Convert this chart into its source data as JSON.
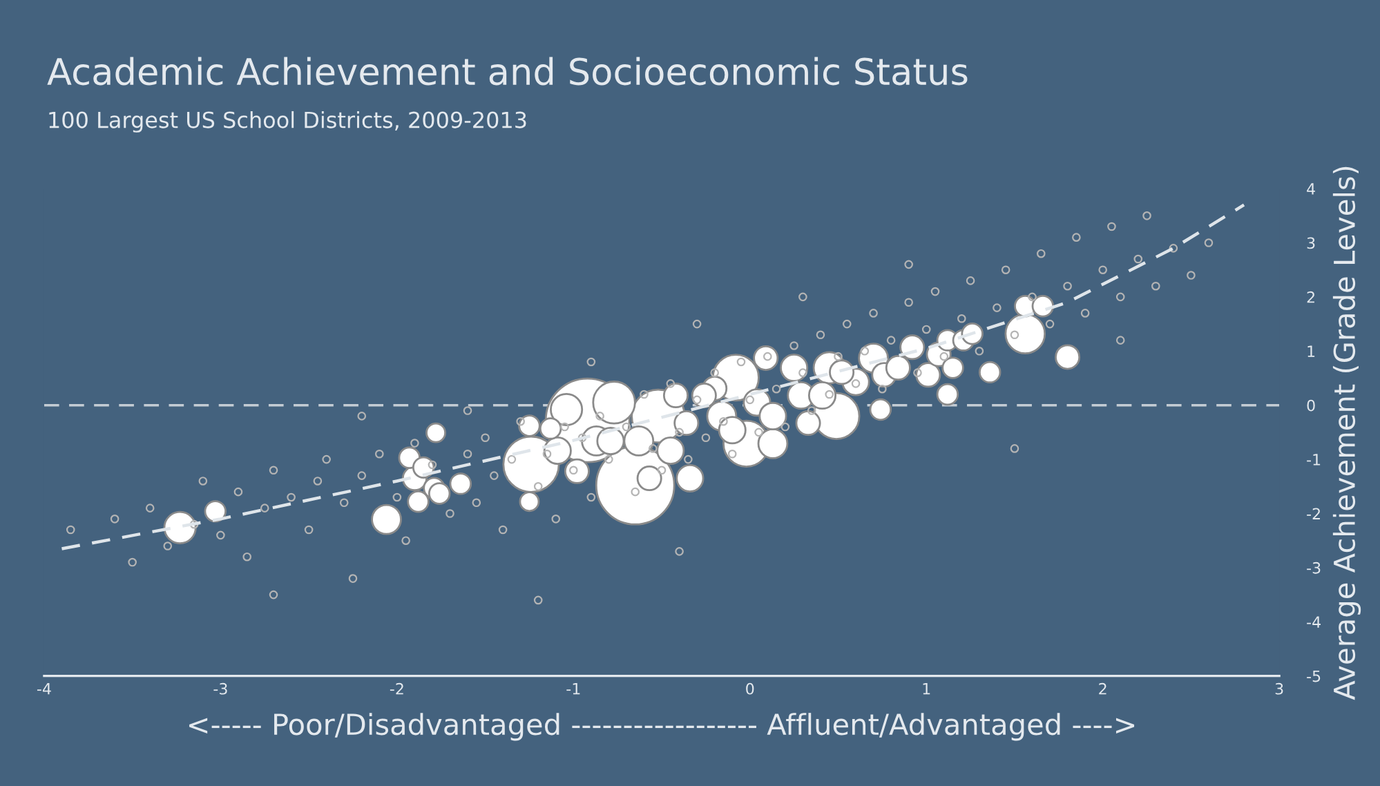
{
  "chart_data": {
    "type": "bubble",
    "title": "Academic Achievement and Socioeconomic Status",
    "subtitle": "100 Largest US School Districts, 2009-2013",
    "xlabel": "<----- Poor/Disadvantaged ------------------ Affluent/Advantaged ---->",
    "ylabel": "Average Achievement (Grade Levels)",
    "xlim": [
      -4,
      3
    ],
    "ylim": [
      -5,
      4
    ],
    "xticks": [
      -4,
      -3,
      -2,
      -1,
      0,
      1,
      2,
      3
    ],
    "yticks": [
      -5,
      -4,
      -3,
      -2,
      -1,
      0,
      1,
      2,
      3,
      4
    ],
    "grid": false,
    "legend": false,
    "marker": "circle",
    "ref_lines": [
      {
        "axis": "y",
        "value": 0,
        "color": "#c4ccd4",
        "line_style": "dashed"
      }
    ],
    "series": [
      {
        "type": "scatter",
        "color": "#b4b4b4",
        "x": [
          -3.85,
          -3.6,
          -3.5,
          -3.4,
          -3.3,
          -3.15,
          -3.1,
          -3.0,
          -2.9,
          -2.85,
          -2.75,
          -2.7,
          -2.6,
          -2.5,
          -2.45,
          -2.4,
          -2.3,
          -2.25,
          -2.2,
          -2.1,
          -2.0,
          -1.95,
          -1.9,
          -1.8,
          -1.7,
          -1.6,
          -1.55,
          -1.5,
          -1.45,
          -1.4,
          -1.35,
          -1.3,
          -1.2,
          -1.15,
          -1.1,
          -1.05,
          -1.0,
          -0.95,
          -0.9,
          -0.85,
          -0.8,
          -0.7,
          -0.65,
          -0.6,
          -0.55,
          -0.5,
          -0.45,
          -0.4,
          -0.35,
          -0.3,
          -0.25,
          -0.2,
          -0.15,
          -0.1,
          -0.05,
          0.0,
          0.05,
          0.1,
          0.15,
          0.2,
          0.25,
          0.3,
          0.35,
          0.4,
          0.45,
          0.5,
          0.55,
          0.6,
          0.65,
          0.7,
          0.75,
          0.8,
          0.9,
          0.95,
          1.0,
          1.05,
          1.1,
          1.2,
          1.25,
          1.3,
          1.4,
          1.45,
          1.5,
          1.6,
          1.65,
          1.7,
          1.8,
          1.85,
          1.9,
          2.0,
          2.05,
          2.1,
          2.2,
          2.25,
          2.3,
          2.4,
          2.5,
          2.6,
          -2.2,
          -1.6,
          -0.9,
          -0.3,
          0.3,
          0.9,
          1.5,
          2.1,
          -2.7,
          -1.2,
          -0.4
        ],
        "values": [
          -2.3,
          -2.1,
          -2.9,
          -1.9,
          -2.6,
          -2.2,
          -1.4,
          -2.4,
          -1.6,
          -2.8,
          -1.9,
          -1.2,
          -1.7,
          -2.3,
          -1.4,
          -1.0,
          -1.8,
          -3.2,
          -1.3,
          -0.9,
          -1.7,
          -2.5,
          -0.7,
          -1.1,
          -2.0,
          -0.9,
          -1.8,
          -0.6,
          -1.3,
          -2.3,
          -1.0,
          -0.3,
          -1.5,
          -0.9,
          -2.1,
          -0.4,
          -1.2,
          -0.6,
          -1.7,
          -0.2,
          -1.0,
          -0.4,
          -1.6,
          0.2,
          -0.8,
          -1.2,
          0.4,
          -0.5,
          -1.0,
          0.1,
          -0.6,
          0.6,
          -0.3,
          -0.9,
          0.8,
          0.1,
          -0.5,
          0.9,
          0.3,
          -0.4,
          1.1,
          0.6,
          -0.1,
          1.3,
          0.2,
          0.9,
          1.5,
          0.4,
          1.0,
          1.7,
          0.3,
          1.2,
          1.9,
          0.6,
          1.4,
          2.1,
          0.9,
          1.6,
          2.3,
          1.0,
          1.8,
          2.5,
          1.3,
          2.0,
          2.8,
          1.5,
          2.2,
          3.1,
          1.7,
          2.5,
          3.3,
          2.0,
          2.7,
          3.5,
          2.2,
          2.9,
          2.4,
          3.0,
          -0.2,
          -0.1,
          0.8,
          1.5,
          2.0,
          2.6,
          -0.8,
          1.2,
          -3.5,
          -3.6,
          -2.7
        ]
      },
      {
        "type": "line",
        "color": "#dfe5ea",
        "line_style": "dashed",
        "marker": "none",
        "x": [
          -3.9,
          -3.0,
          -2.0,
          -1.0,
          0.0,
          1.0,
          1.8,
          2.4,
          2.8
        ],
        "values": [
          -2.65,
          -2.1,
          -1.4,
          -0.65,
          0.2,
          1.05,
          1.9,
          2.9,
          3.7
        ]
      },
      {
        "color": "#ffffff",
        "x": [
          -3.23,
          -3.03,
          -2.06,
          -1.93,
          -1.85,
          -1.9,
          -1.79,
          -1.88,
          -1.76,
          -1.78,
          -1.64,
          -1.24,
          -1.25,
          -1.25,
          -1.09,
          -1.13,
          -0.92,
          -0.65,
          -0.52,
          -0.77,
          -0.87,
          -0.63,
          -0.57,
          -0.45,
          -0.36,
          -0.42,
          -0.34,
          -0.98,
          -0.79,
          -1.04,
          -0.2,
          -0.16,
          -0.08,
          -0.1,
          -0.02,
          0.04,
          0.13,
          0.13,
          0.09,
          0.25,
          0.29,
          0.33,
          0.45,
          0.49,
          0.41,
          0.52,
          0.6,
          0.7,
          0.76,
          0.74,
          0.84,
          0.92,
          1.01,
          1.07,
          1.12,
          1.12,
          1.15,
          1.21,
          1.26,
          1.36,
          1.56,
          1.56,
          1.66,
          1.8,
          -0.26
        ],
        "values": [
          -2.26,
          -1.96,
          -2.11,
          -0.97,
          -1.15,
          -1.35,
          -1.53,
          -1.78,
          -1.63,
          -0.51,
          -1.45,
          -1.09,
          -0.38,
          -1.78,
          -0.84,
          -0.43,
          -0.28,
          -1.48,
          -0.2,
          0.05,
          -0.66,
          -0.66,
          -1.35,
          -0.84,
          -0.33,
          0.18,
          -1.35,
          -1.22,
          -0.66,
          -0.08,
          0.31,
          -0.2,
          0.51,
          -0.46,
          -0.71,
          0.05,
          -0.2,
          -0.71,
          0.87,
          0.69,
          0.18,
          -0.33,
          0.69,
          -0.2,
          0.18,
          0.61,
          0.43,
          0.87,
          0.56,
          -0.08,
          0.69,
          1.07,
          0.56,
          0.94,
          1.2,
          0.2,
          0.69,
          1.2,
          1.32,
          0.61,
          1.32,
          1.83,
          1.83,
          0.89,
          0.18
        ],
        "sizes": [
          0.14,
          0.06,
          0.12,
          0.06,
          0.06,
          0.08,
          0.06,
          0.06,
          0.06,
          0.05,
          0.06,
          0.44,
          0.06,
          0.05,
          0.1,
          0.06,
          1.0,
          0.87,
          0.4,
          0.25,
          0.12,
          0.12,
          0.08,
          0.1,
          0.08,
          0.08,
          0.1,
          0.08,
          0.1,
          0.14,
          0.08,
          0.12,
          0.3,
          0.1,
          0.3,
          0.1,
          0.1,
          0.12,
          0.08,
          0.1,
          0.1,
          0.08,
          0.14,
          0.3,
          0.1,
          0.08,
          0.1,
          0.12,
          0.08,
          0.06,
          0.08,
          0.08,
          0.08,
          0.08,
          0.06,
          0.06,
          0.06,
          0.06,
          0.06,
          0.06,
          0.22,
          0.06,
          0.06,
          0.08,
          0.08
        ]
      }
    ]
  }
}
